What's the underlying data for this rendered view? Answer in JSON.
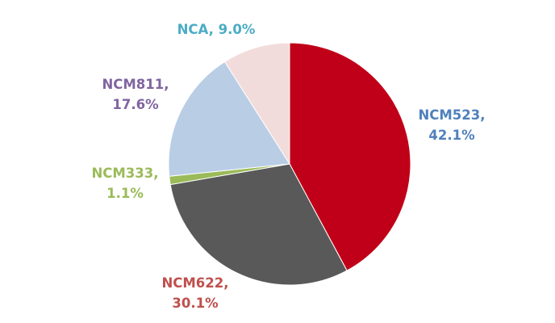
{
  "chart_data": {
    "type": "pie",
    "title": "",
    "start": "top",
    "direction": "clockwise",
    "slices": [
      {
        "name": "NCM523",
        "value": 42.1,
        "label": "42.1%",
        "color": "#C00018",
        "label_color": "#4F81BD"
      },
      {
        "name": "NCM622",
        "value": 30.1,
        "label": "30.1%",
        "color": "#595959",
        "label_color": "#C0504D"
      },
      {
        "name": "NCM333",
        "value": 1.1,
        "label": "1.1%",
        "color": "#9BBB59",
        "label_color": "#9BBB59"
      },
      {
        "name": "NCM811",
        "value": 17.6,
        "label": "17.6%",
        "color": "#B9CDE5",
        "label_color": "#8064A2"
      },
      {
        "name": "NCA",
        "value": 9.0,
        "label": "9.0%",
        "color": "#F2DCDB",
        "label_color": "#4BACC6"
      }
    ]
  }
}
